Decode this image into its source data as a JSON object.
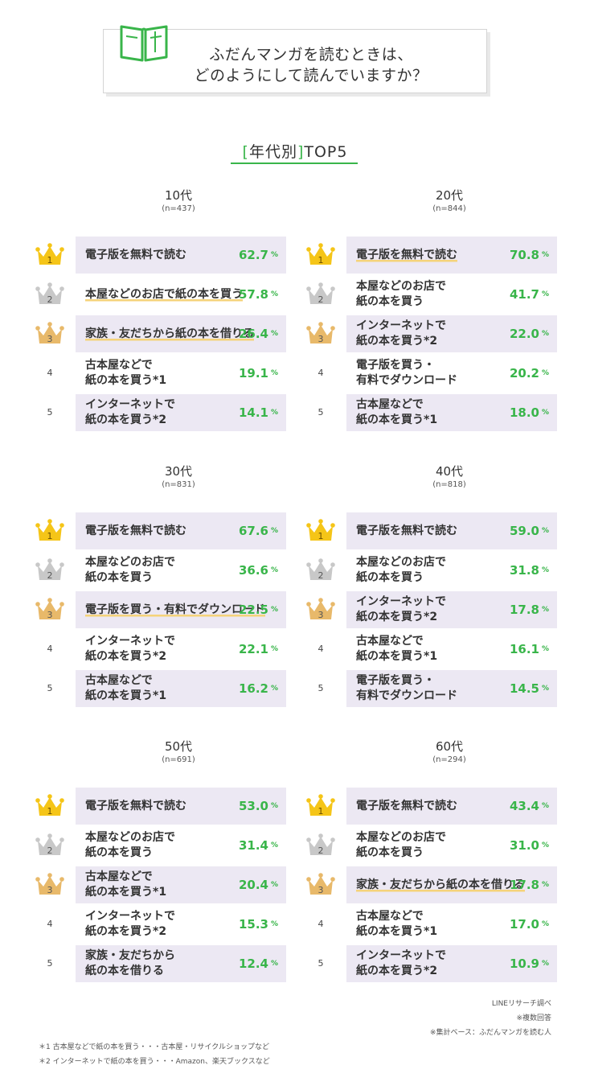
{
  "header": {
    "title_line1": "ふだんマンガを読むときは、",
    "title_line2": "どのようにして読んでいますか？"
  },
  "subtitle": {
    "bracket_open": "[",
    "text": "年代別",
    "bracket_close": "]",
    "suffix": "TOP5"
  },
  "colors": {
    "accent": "#39b54a",
    "shade": "#ece8f3",
    "gold": "#f5c518",
    "silver": "#c8c8c8",
    "bronze": "#e8b96a",
    "highlight": "#f5d37a"
  },
  "chart_data": [
    {
      "type": "table",
      "age": "10代",
      "n": "(n=437)",
      "unit": "%",
      "items": [
        {
          "rank": "1",
          "label": "電子版を無料で読む",
          "value": 62.7,
          "display": "62.7",
          "highlight": false
        },
        {
          "rank": "2",
          "label": "本屋などのお店で\n紙の本を買う",
          "value": 57.8,
          "display": "57.8",
          "highlight": true
        },
        {
          "rank": "3",
          "label": "家族・友だちから\n紙の本を借りる",
          "value": 26.4,
          "display": "26.4",
          "highlight": true
        },
        {
          "rank": "4",
          "label": "古本屋などで\n紙の本を買う*1",
          "value": 19.1,
          "display": "19.1",
          "highlight": false
        },
        {
          "rank": "5",
          "label": "インターネットで\n紙の本を買う*2",
          "value": 14.1,
          "display": "14.1",
          "highlight": false
        }
      ]
    },
    {
      "type": "table",
      "age": "20代",
      "n": "(n=844)",
      "unit": "%",
      "items": [
        {
          "rank": "1",
          "label": "電子版を無料で読む",
          "value": 70.8,
          "display": "70.8",
          "highlight": true
        },
        {
          "rank": "2",
          "label": "本屋などのお店で\n紙の本を買う",
          "value": 41.7,
          "display": "41.7",
          "highlight": false
        },
        {
          "rank": "3",
          "label": "インターネットで\n紙の本を買う*2",
          "value": 22.0,
          "display": "22.0",
          "highlight": false
        },
        {
          "rank": "4",
          "label": "電子版を買う・\n有料でダウンロード",
          "value": 20.2,
          "display": "20.2",
          "highlight": false
        },
        {
          "rank": "5",
          "label": "古本屋などで\n紙の本を買う*1",
          "value": 18.0,
          "display": "18.0",
          "highlight": false
        }
      ]
    },
    {
      "type": "table",
      "age": "30代",
      "n": "(n=831)",
      "unit": "%",
      "items": [
        {
          "rank": "1",
          "label": "電子版を無料で読む",
          "value": 67.6,
          "display": "67.6",
          "highlight": false
        },
        {
          "rank": "2",
          "label": "本屋などのお店で\n紙の本を買う",
          "value": 36.6,
          "display": "36.6",
          "highlight": false
        },
        {
          "rank": "3",
          "label": "電子版を買う・\n有料でダウンロード",
          "value": 22.5,
          "display": "22.5",
          "highlight": true
        },
        {
          "rank": "4",
          "label": "インターネットで\n紙の本を買う*2",
          "value": 22.1,
          "display": "22.1",
          "highlight": false
        },
        {
          "rank": "5",
          "label": "古本屋などで\n紙の本を買う*1",
          "value": 16.2,
          "display": "16.2",
          "highlight": false
        }
      ]
    },
    {
      "type": "table",
      "age": "40代",
      "n": "(n=818)",
      "unit": "%",
      "items": [
        {
          "rank": "1",
          "label": "電子版を無料で読む",
          "value": 59.0,
          "display": "59.0",
          "highlight": false
        },
        {
          "rank": "2",
          "label": "本屋などのお店で\n紙の本を買う",
          "value": 31.8,
          "display": "31.8",
          "highlight": false
        },
        {
          "rank": "3",
          "label": "インターネットで\n紙の本を買う*2",
          "value": 17.8,
          "display": "17.8",
          "highlight": false
        },
        {
          "rank": "4",
          "label": "古本屋などで\n紙の本を買う*1",
          "value": 16.1,
          "display": "16.1",
          "highlight": false
        },
        {
          "rank": "5",
          "label": "電子版を買う・\n有料でダウンロード",
          "value": 14.5,
          "display": "14.5",
          "highlight": false
        }
      ]
    },
    {
      "type": "table",
      "age": "50代",
      "n": "(n=691)",
      "unit": "%",
      "items": [
        {
          "rank": "1",
          "label": "電子版を無料で読む",
          "value": 53.0,
          "display": "53.0",
          "highlight": false
        },
        {
          "rank": "2",
          "label": "本屋などのお店で\n紙の本を買う",
          "value": 31.4,
          "display": "31.4",
          "highlight": false
        },
        {
          "rank": "3",
          "label": "古本屋などで\n紙の本を買う*1",
          "value": 20.4,
          "display": "20.4",
          "highlight": false
        },
        {
          "rank": "4",
          "label": "インターネットで\n紙の本を買う*2",
          "value": 15.3,
          "display": "15.3",
          "highlight": false
        },
        {
          "rank": "5",
          "label": "家族・友だちから\n紙の本を借りる",
          "value": 12.4,
          "display": "12.4",
          "highlight": false
        }
      ]
    },
    {
      "type": "table",
      "age": "60代",
      "n": "(n=294)",
      "unit": "%",
      "items": [
        {
          "rank": "1",
          "label": "電子版を無料で読む",
          "value": 43.4,
          "display": "43.4",
          "highlight": false
        },
        {
          "rank": "2",
          "label": "本屋などのお店で\n紙の本を買う",
          "value": 31.0,
          "display": "31.0",
          "highlight": false
        },
        {
          "rank": "3",
          "label": "家族・友だちから\n紙の本を借りる",
          "value": 17.8,
          "display": "17.8",
          "highlight": true
        },
        {
          "rank": "4",
          "label": "古本屋などで\n紙の本を買う*1",
          "value": 17.0,
          "display": "17.0",
          "highlight": false
        },
        {
          "rank": "5",
          "label": "インターネットで\n紙の本を買う*2",
          "value": 10.9,
          "display": "10.9",
          "highlight": false
        }
      ]
    }
  ],
  "footer": {
    "source": "LINEリサーチ調べ",
    "multi": "※複数回答",
    "base": "※集計ベース：ふだんマンガを読む人",
    "note1": "＊1 古本屋などで紙の本を買う・・・古本屋・リサイクルショップなど",
    "note2": "＊2 インターネットで紙の本を買う・・・Amazon、楽天ブックスなど"
  }
}
